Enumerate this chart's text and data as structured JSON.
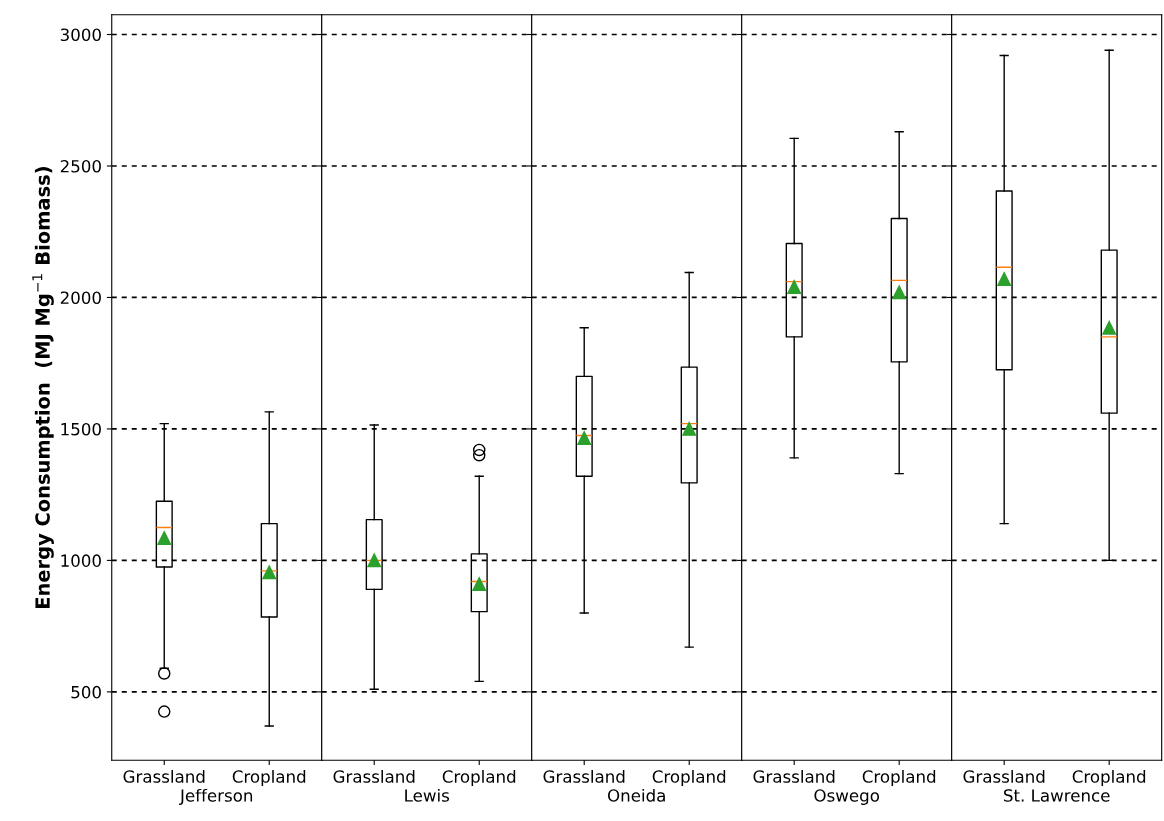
{
  "chart_data": [
    {
      "type": "box",
      "xlabel": "Jefferson",
      "ylabel": "Energy Consumption  (MJ Mg$^{−1}$ Biomass)",
      "categories": [
        "Grassland",
        "Cropland"
      ],
      "ylim": [
        240,
        3075
      ],
      "yticks": [
        500,
        1000,
        1500,
        2000,
        2500,
        3000
      ],
      "grid": "y",
      "boxes": [
        {
          "low": 590,
          "q1": 975,
          "median": 1125,
          "q3": 1225,
          "high": 1520,
          "mean": 1085,
          "outliers": [
            570,
            425
          ]
        },
        {
          "low": 370,
          "q1": 785,
          "median": 960,
          "q3": 1140,
          "high": 1565,
          "mean": 955
        }
      ]
    },
    {
      "type": "box",
      "xlabel": "Lewis",
      "categories": [
        "Grassland",
        "Cropland"
      ],
      "ylim": [
        240,
        3075
      ],
      "yticks": [
        500,
        1000,
        1500,
        2000,
        2500,
        3000
      ],
      "grid": "y",
      "tick_labels": "x",
      "boxes": [
        {
          "low": 510,
          "q1": 890,
          "median": 1000,
          "q3": 1155,
          "high": 1515,
          "mean": 1000
        },
        {
          "low": 540,
          "q1": 805,
          "median": 920,
          "q3": 1025,
          "high": 1320,
          "mean": 910,
          "outliers": [
            1400,
            1420
          ]
        }
      ]
    },
    {
      "type": "box",
      "xlabel": "Oneida",
      "categories": [
        "Grassland",
        "Cropland"
      ],
      "ylim": [
        240,
        3075
      ],
      "yticks": [
        500,
        1000,
        1500,
        2000,
        2500,
        3000
      ],
      "grid": "y",
      "tick_labels": "x",
      "boxes": [
        {
          "low": 800,
          "q1": 1320,
          "median": 1475,
          "q3": 1700,
          "high": 1885,
          "mean": 1465
        },
        {
          "low": 670,
          "q1": 1295,
          "median": 1520,
          "q3": 1735,
          "high": 2095,
          "mean": 1500
        }
      ]
    },
    {
      "type": "box",
      "xlabel": "Oswego",
      "categories": [
        "Grassland",
        "Cropland"
      ],
      "ylim": [
        240,
        3075
      ],
      "yticks": [
        500,
        1000,
        1500,
        2000,
        2500,
        3000
      ],
      "grid": "y",
      "tick_labels": "x",
      "boxes": [
        {
          "low": 1390,
          "q1": 1850,
          "median": 2060,
          "q3": 2205,
          "high": 2605,
          "mean": 2040
        },
        {
          "low": 1330,
          "q1": 1755,
          "median": 2065,
          "q3": 2300,
          "high": 2630,
          "mean": 2020
        }
      ]
    },
    {
      "type": "box",
      "xlabel": "St. Lawrence",
      "categories": [
        "Grassland",
        "Cropland"
      ],
      "ylim": [
        240,
        3075
      ],
      "yticks": [
        500,
        1000,
        1500,
        2000,
        2500,
        3000
      ],
      "grid": "y",
      "tick_labels": "x",
      "boxes": [
        {
          "low": 1140,
          "q1": 1725,
          "median": 2115,
          "q3": 2405,
          "high": 2920,
          "mean": 2070
        },
        {
          "low": 1000,
          "q1": 1560,
          "median": 1850,
          "q3": 2180,
          "high": 2940,
          "mean": 1885
        }
      ]
    }
  ]
}
